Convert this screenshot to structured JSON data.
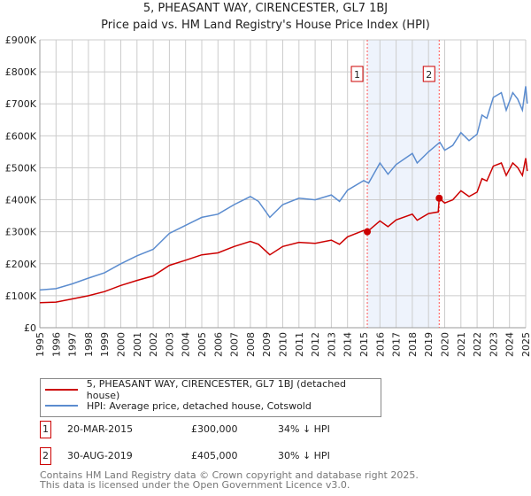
{
  "chart_data": {
    "type": "line",
    "title": "5, PHEASANT WAY, CIRENCESTER, GL7 1BJ",
    "subtitle": "Price paid vs. HM Land Registry's House Price Index (HPI)",
    "xlim": [
      1995,
      2025.1
    ],
    "ylim": [
      0,
      900000
    ],
    "grid": true,
    "y_ticks": [
      {
        "v": 0,
        "label": "£0"
      },
      {
        "v": 100000,
        "label": "£100K"
      },
      {
        "v": 200000,
        "label": "£200K"
      },
      {
        "v": 300000,
        "label": "£300K"
      },
      {
        "v": 400000,
        "label": "£400K"
      },
      {
        "v": 500000,
        "label": "£500K"
      },
      {
        "v": 600000,
        "label": "£600K"
      },
      {
        "v": 700000,
        "label": "£700K"
      },
      {
        "v": 800000,
        "label": "£800K"
      },
      {
        "v": 900000,
        "label": "£900K"
      }
    ],
    "x_ticks": [
      "1995",
      "1996",
      "1997",
      "1998",
      "1999",
      "2000",
      "2001",
      "2002",
      "2003",
      "2004",
      "2005",
      "2006",
      "2007",
      "2008",
      "2009",
      "2010",
      "2011",
      "2012",
      "2013",
      "2014",
      "2015",
      "2016",
      "2017",
      "2018",
      "2019",
      "2020",
      "2021",
      "2022",
      "2023",
      "2024",
      "2025"
    ],
    "series": [
      {
        "name": "5, PHEASANT WAY, CIRENCESTER, GL7 1BJ (detached house)",
        "color": "#cc0000",
        "x": [
          1995,
          1996,
          1997,
          1998,
          1999,
          2000,
          2001,
          2002,
          2003,
          2004,
          2005,
          2006,
          2007,
          2008,
          2008.5,
          2009.2,
          2010,
          2011,
          2012,
          2013,
          2013.5,
          2014,
          2015,
          2015.22,
          2016,
          2016.5,
          2017,
          2018,
          2018.3,
          2019,
          2019.6,
          2019.66,
          2020,
          2020.5,
          2021,
          2021.5,
          2022,
          2022.3,
          2022.6,
          2023,
          2023.5,
          2023.8,
          2024.2,
          2024.5,
          2024.8,
          2025,
          2025.1
        ],
        "y": [
          78000,
          80000,
          90000,
          100000,
          113000,
          132000,
          148000,
          162000,
          195000,
          211000,
          228000,
          234000,
          254000,
          270000,
          261000,
          228000,
          254000,
          267000,
          264000,
          274000,
          261000,
          284000,
          304000,
          300000,
          334000,
          316000,
          337000,
          355000,
          336000,
          357000,
          362000,
          405000,
          390000,
          400000,
          428000,
          410000,
          424000,
          466000,
          459000,
          505000,
          515000,
          476000,
          515000,
          501000,
          476000,
          530000,
          490000
        ]
      },
      {
        "name": "HPI: Average price, detached house, Cotswold",
        "color": "#5b8ccf",
        "x": [
          1995,
          1996,
          1997,
          1998,
          1999,
          2000,
          2001,
          2002,
          2003,
          2004,
          2005,
          2006,
          2007,
          2008,
          2008.5,
          2009.2,
          2010,
          2011,
          2012,
          2013,
          2013.5,
          2014,
          2015,
          2015.3,
          2016,
          2016.5,
          2017,
          2018,
          2018.3,
          2019,
          2019.7,
          2020,
          2020.5,
          2021,
          2021.5,
          2022,
          2022.3,
          2022.6,
          2023,
          2023.5,
          2023.8,
          2024.2,
          2024.5,
          2024.8,
          2025,
          2025.1
        ],
        "y": [
          118000,
          122000,
          137000,
          155000,
          172000,
          200000,
          225000,
          245000,
          295000,
          320000,
          345000,
          355000,
          385000,
          410000,
          395000,
          345000,
          385000,
          405000,
          400000,
          415000,
          395000,
          430000,
          460000,
          452000,
          515000,
          480000,
          510000,
          545000,
          515000,
          550000,
          580000,
          555000,
          570000,
          610000,
          585000,
          605000,
          665000,
          655000,
          720000,
          735000,
          680000,
          735000,
          715000,
          680000,
          755000,
          700000
        ]
      }
    ],
    "shaded_range": [
      2015.22,
      2019.66
    ],
    "markers": [
      {
        "label": "1",
        "x": 2015.22,
        "y": 300000
      },
      {
        "label": "2",
        "x": 2019.66,
        "y": 405000
      }
    ]
  },
  "legend": {
    "red_label": "5, PHEASANT WAY, CIRENCESTER, GL7 1BJ (detached house)",
    "blue_label": "HPI: Average price, detached house, Cotswold"
  },
  "transactions": [
    {
      "num": "1",
      "date": "20-MAR-2015",
      "price": "£300,000",
      "delta": "34% ↓ HPI"
    },
    {
      "num": "2",
      "date": "30-AUG-2019",
      "price": "£405,000",
      "delta": "30% ↓ HPI"
    }
  ],
  "footer": {
    "line1": "Contains HM Land Registry data © Crown copyright and database right 2025.",
    "line2": "This data is licensed under the Open Government Licence v3.0."
  }
}
